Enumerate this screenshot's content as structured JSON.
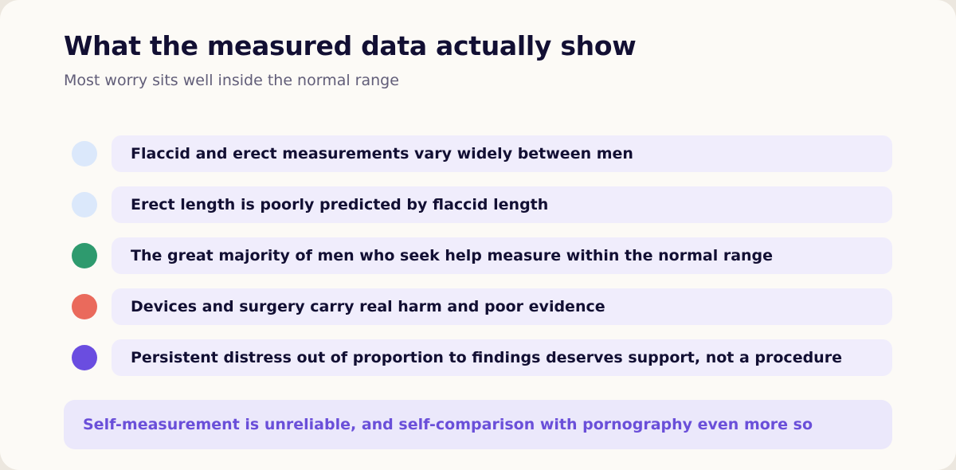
{
  "header": {
    "title": "What the measured data actually show",
    "subtitle": "Most worry sits well inside the normal range"
  },
  "items": [
    {
      "label": "Flaccid and erect measurements vary widely between men",
      "dot_color": "#dbe8fb"
    },
    {
      "label": "Erect length is poorly predicted by flaccid length",
      "dot_color": "#dbe8fb"
    },
    {
      "label": "The great majority of men who seek help measure within the normal range",
      "dot_color": "#2e9a6e"
    },
    {
      "label": "Devices and surgery carry real harm and poor evidence",
      "dot_color": "#ea6a5c"
    },
    {
      "label": "Persistent distress out of proportion to findings deserves support, not a procedure",
      "dot_color": "#6a4de0"
    }
  ],
  "note": {
    "text": "Self-measurement is unreliable, and self-comparison with pornography even more so"
  },
  "colors": {
    "background": "#fcfaf6",
    "title": "#120f33",
    "pill": "#f0edfc",
    "note_background": "#ebe8fb",
    "note_text": "#6a4fd9"
  }
}
